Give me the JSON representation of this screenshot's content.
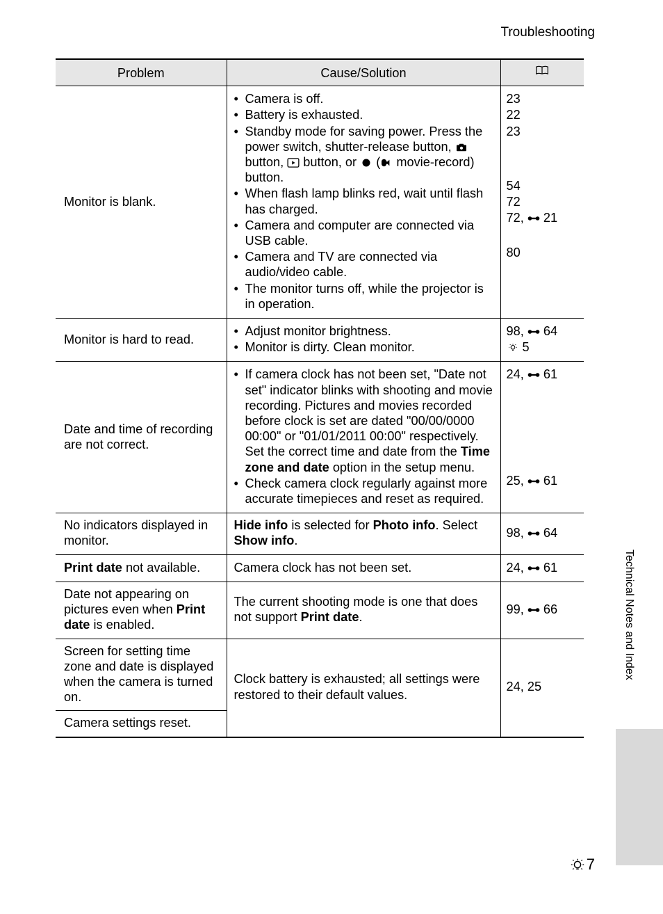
{
  "page_title": "Troubleshooting",
  "side_label": "Technical Notes and Index",
  "page_number": "7",
  "table": {
    "headers": {
      "problem": "Problem",
      "cause": "Cause/Solution"
    },
    "rows": [
      {
        "problem": "Monitor is blank.",
        "cause_items": [
          {
            "text": "Camera is off.",
            "ref_plain": "23"
          },
          {
            "text": "Battery is exhausted.",
            "ref_plain": "22"
          },
          {
            "text_html": "Standby mode for saving power. Press the power switch, shutter-release button, {camera} button, {play} button, or {rec} ({movie} movie-record) button.",
            "ref_plain": "23"
          },
          {
            "text": "When flash lamp blinks red, wait until flash has charged.",
            "ref_plain": "54"
          },
          {
            "text": "Camera and computer are connected via USB cable.",
            "ref_plain": "72"
          },
          {
            "text": "Camera and TV are connected via audio/video cable.",
            "ref_link": "72, {link} 21"
          },
          {
            "text": "The monitor turns off, while the projector is in operation.",
            "ref_plain": "80"
          }
        ]
      },
      {
        "problem": "Monitor is hard to read.",
        "cause_items": [
          {
            "text": "Adjust monitor brightness.",
            "ref_link": "98, {link} 64"
          },
          {
            "text": "Monitor is dirty. Clean monitor.",
            "ref_bulb": "{bulb} 5"
          }
        ]
      },
      {
        "problem": "Date and time of recording are not correct.",
        "cause_items": [
          {
            "text_html": "If camera clock has not been set, \"Date not set\" indicator blinks with shooting and movie recording. Pictures and movies recorded before clock is set are dated \"00/00/0000 00:00\" or \"01/01/2011 00:00\" respectively. Set the correct time and date from the <b>Time zone and date</b> option in the setup menu.",
            "ref_link": "24, {link} 61"
          },
          {
            "text": "Check camera clock regularly against more accurate timepieces and reset as required.",
            "ref_link": "25, {link} 61"
          }
        ]
      },
      {
        "problem": "No indicators displayed in monitor.",
        "cause_plain_html": "<b>Hide info</b> is selected for <b>Photo info</b>. Select <b>Show info</b>.",
        "ref_link": "98, {link} 64"
      },
      {
        "problem_html": "<b>Print date</b> not available.",
        "cause_plain": "Camera clock has not been set.",
        "ref_link": "24, {link} 61"
      },
      {
        "problem_html": "Date not appearing on pictures even when <b>Print date</b> is enabled.",
        "cause_plain_html": "The current shooting mode is one that does not support <b>Print date</b>.",
        "ref_link": "99, {link} 66"
      },
      {
        "problem": "Screen for setting time zone and date is displayed when the camera is turned on.",
        "cause_plain": "Clock battery is exhausted; all settings were restored to their default values.",
        "ref_plain": "24, 25",
        "merge_next": true
      },
      {
        "problem": "Camera settings reset.",
        "merged": true
      }
    ],
    "ref_spacing_row0": [
      0,
      0,
      0,
      56,
      0,
      0,
      28
    ]
  }
}
